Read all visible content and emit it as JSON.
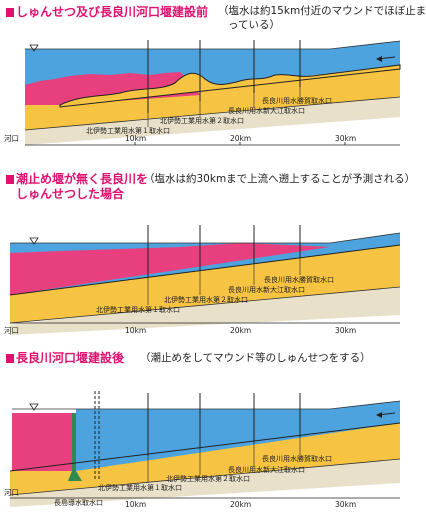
{
  "panels": [
    {
      "heading": "しゅんせつ及び長良川河口堰建設前",
      "note_line1": "（塩水は約15km付近のマウンドでほぼ止ま",
      "note_line2": "っている）",
      "labels": [
        "北伊勢工業用水第１取水口",
        "北伊勢工業用水第２取水口",
        "長良川用水新大江取水口",
        "長良川用水勝賀取水口"
      ],
      "axis": [
        "河口",
        "10km",
        "20km",
        "30km"
      ]
    },
    {
      "heading_line1": "潮止め堰が無く長良川を",
      "heading_line2": "しゅんせつした場合",
      "note": "（塩水は約30kmまで上流へ遡上することが予測される）",
      "labels": [
        "北伊勢工業用水第１取水口",
        "北伊勢工業用水第２取水口",
        "長良川用水新大江取水口",
        "長良川用水勝賀取水口"
      ],
      "axis": [
        "河口",
        "10km",
        "20km",
        "30km"
      ]
    },
    {
      "heading": "長良川河口堰建設後",
      "note": "（潮止めをしてマウンド等のしゅんせつをする）",
      "labels": [
        "長島導水取水口",
        "北伊勢工業用水第１取水口",
        "北伊勢工業用水第２取水口",
        "長良川用水新大江取水口",
        "長良川用水勝賀取水口"
      ],
      "axis": [
        "河口",
        "10km",
        "20km",
        "30km"
      ]
    }
  ],
  "colors": {
    "saltwater": "#e8407e",
    "freshwater": "#4da3de",
    "riverbed": "#f6c342",
    "heading": "#e0116f",
    "gravel": "#e8e0c8"
  },
  "icons": [
    "water-level-triangle-icon",
    "flow-arrow-icon"
  ]
}
